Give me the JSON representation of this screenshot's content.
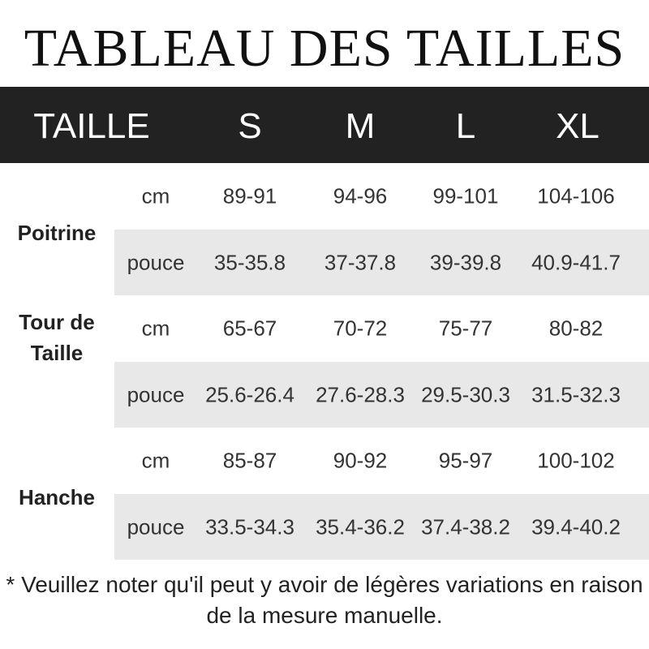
{
  "title": "TABLEAU DES TAILLES",
  "header": [
    "TAILLE",
    "S",
    "M",
    "L",
    "XL"
  ],
  "groups": [
    {
      "name": "Poitrine",
      "rows": [
        {
          "unit": "cm",
          "values": [
            "89-91",
            "94-96",
            "99-101",
            "104-106"
          ]
        },
        {
          "unit": "pouce",
          "values": [
            "35-35.8",
            "37-37.8",
            "39-39.8",
            "40.9-41.7"
          ]
        }
      ]
    },
    {
      "name": "Tour de Taille",
      "rows": [
        {
          "unit": "cm",
          "values": [
            "65-67",
            "70-72",
            "75-77",
            "80-82"
          ]
        },
        {
          "unit": "pouce",
          "values": [
            "25.6-26.4",
            "27.6-28.3",
            "29.5-30.3",
            "31.5-32.3"
          ]
        }
      ]
    },
    {
      "name": "Hanche",
      "rows": [
        {
          "unit": "cm",
          "values": [
            "85-87",
            "90-92",
            "95-97",
            "100-102"
          ]
        },
        {
          "unit": "pouce",
          "values": [
            "33.5-34.3",
            "35.4-36.2",
            "37.4-38.2",
            "39.4-40.2"
          ]
        }
      ]
    }
  ],
  "note": "* Veuillez noter qu'il peut y avoir de légères variations en raison de la mesure manuelle."
}
